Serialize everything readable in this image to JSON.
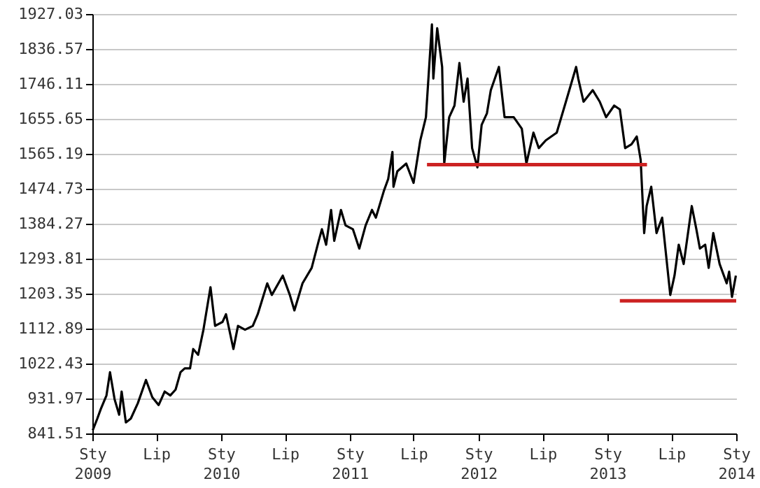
{
  "chart_data": {
    "type": "line",
    "xlim": [
      "2009-01-01",
      "2014-01-01"
    ],
    "xticks": [
      {
        "value": "2009-01-01",
        "label": "Sty 2009"
      },
      {
        "value": "2009-07-01",
        "label": "Lip"
      },
      {
        "value": "2010-01-01",
        "label": "Sty 2010"
      },
      {
        "value": "2010-07-01",
        "label": "Lip"
      },
      {
        "value": "2011-01-01",
        "label": "Sty 2011"
      },
      {
        "value": "2011-07-01",
        "label": "Lip"
      },
      {
        "value": "2012-01-01",
        "label": "Sty 2012"
      },
      {
        "value": "2012-07-01",
        "label": "Lip"
      },
      {
        "value": "2013-01-01",
        "label": "Sty 2013"
      },
      {
        "value": "2013-07-01",
        "label": "Lip"
      },
      {
        "value": "2014-01-01",
        "label": "Sty 2014"
      }
    ],
    "ylim": [
      841.51,
      1927.03
    ],
    "yticks": [
      841.51,
      931.97,
      1022.43,
      1112.89,
      1203.35,
      1293.81,
      1384.27,
      1474.73,
      1565.19,
      1655.65,
      1746.11,
      1836.57,
      1927.03
    ],
    "grid": "y",
    "line_style": "solid",
    "marker": "none",
    "series": [
      {
        "color": "#000000",
        "x": [
          "2009-01-02",
          "2009-01-15",
          "2009-01-25",
          "2009-02-10",
          "2009-02-20",
          "2009-03-05",
          "2009-03-18",
          "2009-03-25",
          "2009-04-06",
          "2009-04-20",
          "2009-05-10",
          "2009-06-02",
          "2009-06-20",
          "2009-07-08",
          "2009-07-25",
          "2009-08-10",
          "2009-08-25",
          "2009-09-08",
          "2009-09-20",
          "2009-10-05",
          "2009-10-14",
          "2009-10-28",
          "2009-11-12",
          "2009-12-02",
          "2009-12-15",
          "2010-01-05",
          "2010-01-15",
          "2010-02-05",
          "2010-02-18",
          "2010-03-10",
          "2010-04-01",
          "2010-04-15",
          "2010-05-12",
          "2010-05-25",
          "2010-06-25",
          "2010-07-15",
          "2010-07-28",
          "2010-08-20",
          "2010-09-15",
          "2010-10-05",
          "2010-10-14",
          "2010-10-26",
          "2010-11-09",
          "2010-11-18",
          "2010-12-07",
          "2010-12-20",
          "2011-01-10",
          "2011-01-28",
          "2011-02-15",
          "2011-03-05",
          "2011-03-16",
          "2011-04-08",
          "2011-04-20",
          "2011-05-02",
          "2011-05-05",
          "2011-05-16",
          "2011-06-10",
          "2011-07-01",
          "2011-07-20",
          "2011-08-05",
          "2011-08-22",
          "2011-08-26",
          "2011-09-06",
          "2011-09-20",
          "2011-09-26",
          "2011-10-10",
          "2011-10-25",
          "2011-11-08",
          "2011-11-20",
          "2011-12-01",
          "2011-12-14",
          "2011-12-29",
          "2012-01-10",
          "2012-01-25",
          "2012-02-05",
          "2012-02-28",
          "2012-03-15",
          "2012-04-10",
          "2012-05-03",
          "2012-05-16",
          "2012-06-05",
          "2012-06-20",
          "2012-07-10",
          "2012-08-10",
          "2012-09-05",
          "2012-10-04",
          "2012-10-10",
          "2012-10-25",
          "2012-11-20",
          "2012-12-10",
          "2012-12-28",
          "2013-01-20",
          "2013-02-05",
          "2013-02-20",
          "2013-03-10",
          "2013-03-25",
          "2013-04-05",
          "2013-04-15",
          "2013-04-22",
          "2013-05-05",
          "2013-05-20",
          "2013-06-05",
          "2013-06-28",
          "2013-07-10",
          "2013-07-22",
          "2013-08-05",
          "2013-08-28",
          "2013-09-10",
          "2013-09-20",
          "2013-10-05",
          "2013-10-15",
          "2013-10-28",
          "2013-11-15",
          "2013-12-05",
          "2013-12-12",
          "2013-12-20",
          "2013-12-31"
        ],
        "values": [
          850,
          880,
          905,
          940,
          1000,
          930,
          890,
          950,
          870,
          880,
          920,
          980,
          935,
          915,
          950,
          940,
          955,
          1000,
          1010,
          1010,
          1060,
          1045,
          1110,
          1220,
          1120,
          1130,
          1150,
          1060,
          1120,
          1110,
          1120,
          1150,
          1230,
          1200,
          1250,
          1200,
          1160,
          1230,
          1270,
          1340,
          1370,
          1330,
          1420,
          1340,
          1420,
          1380,
          1370,
          1320,
          1380,
          1420,
          1400,
          1470,
          1500,
          1570,
          1480,
          1520,
          1540,
          1490,
          1600,
          1660,
          1900,
          1760,
          1890,
          1790,
          1540,
          1660,
          1690,
          1800,
          1700,
          1760,
          1580,
          1530,
          1640,
          1670,
          1730,
          1790,
          1660,
          1660,
          1630,
          1540,
          1620,
          1580,
          1600,
          1620,
          1700,
          1790,
          1760,
          1700,
          1730,
          1700,
          1660,
          1690,
          1680,
          1580,
          1590,
          1610,
          1550,
          1360,
          1430,
          1480,
          1360,
          1400,
          1200,
          1250,
          1330,
          1280,
          1430,
          1370,
          1320,
          1330,
          1270,
          1360,
          1280,
          1230,
          1260,
          1195,
          1250
        ]
      },
      {
        "color": "#cc2222",
        "x": [
          "2011-08-08",
          "2013-04-23"
        ],
        "values": [
          1537,
          1537
        ]
      },
      {
        "color": "#cc2222",
        "x": [
          "2013-02-05",
          "2014-01-01"
        ],
        "values": [
          1185,
          1185
        ]
      }
    ]
  }
}
